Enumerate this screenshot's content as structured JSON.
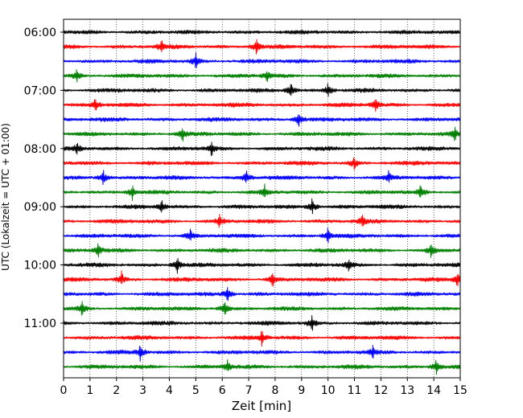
{
  "chart_data": {
    "type": "line",
    "xlabel": "Zeit  [min]",
    "ylabel": "UTC (Lokalzeit = UTC + 01:00)",
    "xlim": [
      0,
      15
    ],
    "xticks": [
      "0",
      "1",
      "2",
      "3",
      "4",
      "5",
      "6",
      "7",
      "8",
      "9",
      "10",
      "11",
      "12",
      "13",
      "14",
      "15"
    ],
    "ytick_labels": [
      "06:00",
      "07:00",
      "08:00",
      "09:00",
      "10:00",
      "11:00"
    ],
    "grid": "vertical dotted lines at each minute",
    "series_colors": [
      "#000000",
      "#ff0000",
      "#0000ff",
      "#008000"
    ],
    "traces": [
      {
        "start": "06:00",
        "color": "#000000",
        "spikes": []
      },
      {
        "start": "06:15",
        "color": "#ff0000",
        "spikes": [
          3.7,
          7.3
        ]
      },
      {
        "start": "06:30",
        "color": "#0000ff",
        "spikes": [
          5.0
        ]
      },
      {
        "start": "06:45",
        "color": "#008000",
        "spikes": [
          0.5,
          7.7
        ]
      },
      {
        "start": "07:00",
        "color": "#000000",
        "spikes": [
          8.6,
          10.0
        ]
      },
      {
        "start": "07:15",
        "color": "#ff0000",
        "spikes": [
          1.2,
          11.8
        ]
      },
      {
        "start": "07:30",
        "color": "#0000ff",
        "spikes": [
          8.9
        ]
      },
      {
        "start": "07:45",
        "color": "#008000",
        "spikes": [
          4.5,
          14.8
        ]
      },
      {
        "start": "08:00",
        "color": "#000000",
        "spikes": [
          0.5,
          5.6
        ]
      },
      {
        "start": "08:15",
        "color": "#ff0000",
        "spikes": [
          11.0
        ]
      },
      {
        "start": "08:30",
        "color": "#0000ff",
        "spikes": [
          1.5,
          6.9,
          12.3
        ]
      },
      {
        "start": "08:45",
        "color": "#008000",
        "spikes": [
          2.6,
          7.6,
          13.5
        ]
      },
      {
        "start": "09:00",
        "color": "#000000",
        "spikes": [
          3.7,
          9.4
        ]
      },
      {
        "start": "09:15",
        "color": "#ff0000",
        "spikes": [
          5.9,
          11.3
        ]
      },
      {
        "start": "09:30",
        "color": "#0000ff",
        "spikes": [
          4.8,
          10.0
        ]
      },
      {
        "start": "09:45",
        "color": "#008000",
        "spikes": [
          1.3,
          13.9
        ]
      },
      {
        "start": "10:00",
        "color": "#000000",
        "spikes": [
          4.3,
          10.8
        ]
      },
      {
        "start": "10:15",
        "color": "#ff0000",
        "spikes": [
          2.2,
          7.9,
          14.9
        ]
      },
      {
        "start": "10:30",
        "color": "#0000ff",
        "spikes": [
          6.2
        ]
      },
      {
        "start": "10:45",
        "color": "#008000",
        "spikes": [
          0.7,
          6.1
        ]
      },
      {
        "start": "11:00",
        "color": "#000000",
        "spikes": [
          9.4
        ]
      },
      {
        "start": "11:15",
        "color": "#ff0000",
        "spikes": [
          7.5
        ]
      },
      {
        "start": "11:30",
        "color": "#0000ff",
        "spikes": [
          2.9,
          11.7
        ]
      },
      {
        "start": "11:45",
        "color": "#008000",
        "spikes": [
          6.2,
          14.1
        ]
      }
    ]
  }
}
